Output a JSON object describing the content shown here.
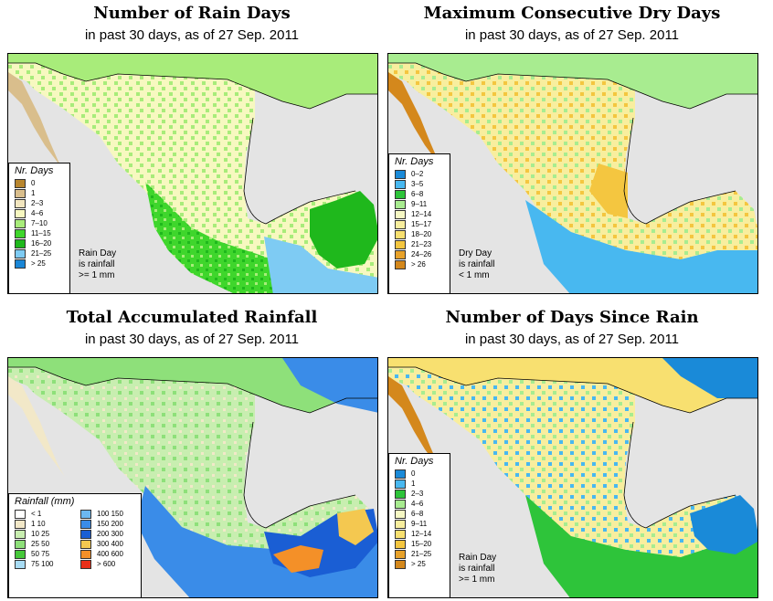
{
  "panels": [
    {
      "title": "Number of Rain Days",
      "subtitle": "in past 30 days, as of  27 Sep. 2011",
      "legend": {
        "title": "Nr. Days",
        "items": [
          {
            "label": "0",
            "color": "#b8862e"
          },
          {
            "label": "1",
            "color": "#d9be8c"
          },
          {
            "label": "2–3",
            "color": "#f2e6bf"
          },
          {
            "label": "4–6",
            "color": "#f7f8c0"
          },
          {
            "label": "7–10",
            "color": "#a8ec7a"
          },
          {
            "label": "11–15",
            "color": "#3fd62c"
          },
          {
            "label": "16–20",
            "color": "#1fb81c"
          },
          {
            "label": "21–25",
            "color": "#7ecbf3"
          },
          {
            "label": "> 25",
            "color": "#1a86d6"
          }
        ],
        "note": [
          "Rain Day",
          "is rainfall",
          ">= 1 mm"
        ]
      }
    },
    {
      "title": "Maximum Consecutive Dry Days",
      "subtitle": "in past 30 days, as of  27 Sep. 2011",
      "legend": {
        "title": "Nr. Days",
        "items": [
          {
            "label": "0–2",
            "color": "#1a8ad8"
          },
          {
            "label": "3–5",
            "color": "#48b8f0"
          },
          {
            "label": "6–8",
            "color": "#2ec43a"
          },
          {
            "label": "9–11",
            "color": "#a8ec90"
          },
          {
            "label": "12–14",
            "color": "#f6f8c4"
          },
          {
            "label": "15–17",
            "color": "#f8ee9e"
          },
          {
            "label": "18–20",
            "color": "#f8e070"
          },
          {
            "label": "21–23",
            "color": "#f4c640"
          },
          {
            "label": "24–26",
            "color": "#e8a22a"
          },
          {
            "label": "> 26",
            "color": "#d4881c"
          }
        ],
        "note": [
          "Dry Day",
          "is rainfall",
          "< 1 mm"
        ]
      }
    },
    {
      "title": "Total Accumulated Rainfall",
      "subtitle": "in past 30 days, as of  27 Sep. 2011",
      "legend": {
        "title": "Rainfall (mm)",
        "items": [
          {
            "label": "< 1",
            "color": "#ffffff"
          },
          {
            "label": "1    10",
            "color": "#f2e8c8"
          },
          {
            "label": "10    25",
            "color": "#c8eeb0"
          },
          {
            "label": "25    50",
            "color": "#8ee07a"
          },
          {
            "label": "50    75",
            "color": "#46c83a"
          },
          {
            "label": "75  100",
            "color": "#a8dcf4"
          },
          {
            "label": "100  150",
            "color": "#6cb8f0"
          },
          {
            "label": "150  200",
            "color": "#3a8ce8"
          },
          {
            "label": "200  300",
            "color": "#1a5ed4"
          },
          {
            "label": "300  400",
            "color": "#f4c850"
          },
          {
            "label": "400  600",
            "color": "#f49028"
          },
          {
            "label": "> 600",
            "color": "#e8301a"
          }
        ],
        "note": []
      }
    },
    {
      "title": "Number of Days Since Rain",
      "subtitle": "in past 30 days, as of  27 Sep. 2011",
      "legend": {
        "title": "Nr. Days",
        "items": [
          {
            "label": "0",
            "color": "#1a8ad8"
          },
          {
            "label": "1",
            "color": "#48b8f0"
          },
          {
            "label": "2–3",
            "color": "#2ec43a"
          },
          {
            "label": "4–6",
            "color": "#a8ec90"
          },
          {
            "label": "6–8",
            "color": "#f6f8c4"
          },
          {
            "label": "9–11",
            "color": "#f8ee9e"
          },
          {
            "label": "12–14",
            "color": "#f8e070"
          },
          {
            "label": "15–20",
            "color": "#f4c640"
          },
          {
            "label": "21–25",
            "color": "#e8a22a"
          },
          {
            "label": "> 25",
            "color": "#d4881c"
          }
        ],
        "note": [
          "Rain Day",
          "is rainfall",
          ">= 1 mm"
        ]
      }
    }
  ]
}
